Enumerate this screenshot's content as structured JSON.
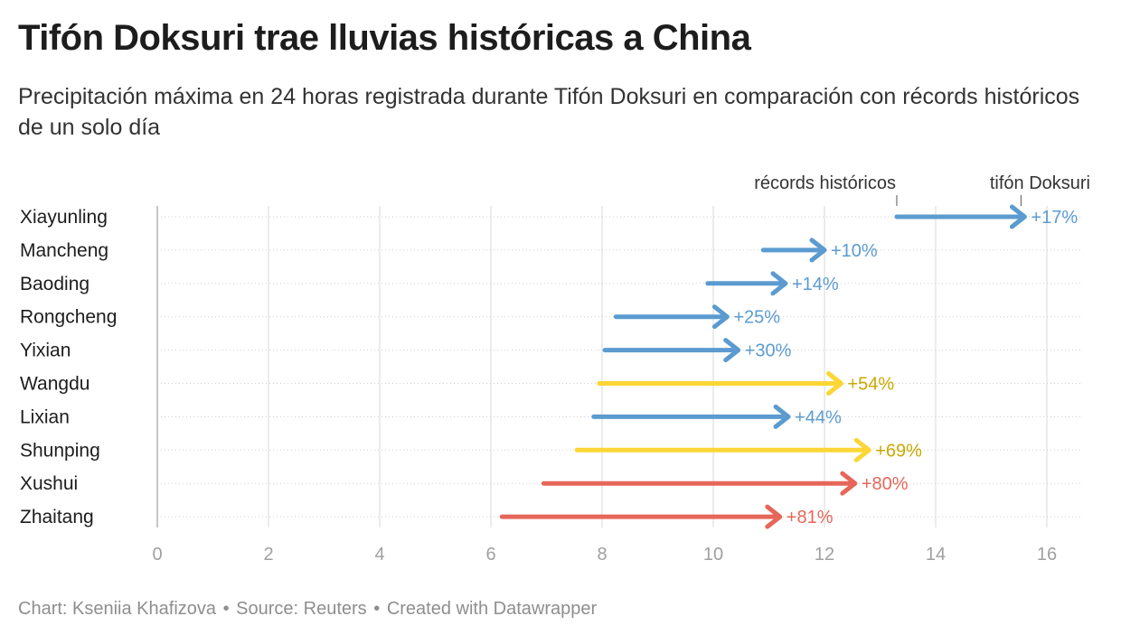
{
  "header": {
    "title": "Tifón Doksuri trae lluvias históricas a China",
    "subtitle": "Precipitación máxima en 24 horas registrada durante Tifón Doksuri en comparación con récords históricos de un solo día"
  },
  "footer": {
    "chart_by": "Chart: Kseniia Khafizova",
    "source": "Source: Reuters",
    "created_with": "Created with Datawrapper",
    "separator": "•"
  },
  "colors": {
    "blue": "#5b9bd0",
    "yellow": "#fcd635",
    "yellow_label": "#c9a800",
    "red": "#e6675a",
    "grid": "#d9d9d9",
    "axis": "#b5b5b5",
    "tick_label": "#a0a0a0"
  },
  "chart_data": {
    "type": "arrow",
    "title": "Tifón Doksuri trae lluvias históricas a China",
    "subtitle": "Precipitación máxima en 24 horas registrada durante Tifón Doksuri en comparación con récords históricos de un solo día",
    "xlim": [
      0,
      16.7
    ],
    "xticks": [
      0,
      2,
      4,
      6,
      8,
      10,
      12,
      14,
      16
    ],
    "grid": true,
    "legend": {
      "start_label": "récords históricos",
      "end_label": "tifón Doksuri"
    },
    "series": [
      {
        "category": "Xiayunling",
        "start": 13.3,
        "end": 15.6,
        "label": "+17%",
        "color": "blue"
      },
      {
        "category": "Mancheng",
        "start": 10.9,
        "end": 12.0,
        "label": "+10%",
        "color": "blue"
      },
      {
        "category": "Baoding",
        "start": 9.9,
        "end": 11.3,
        "label": "+14%",
        "color": "blue"
      },
      {
        "category": "Rongcheng",
        "start": 8.25,
        "end": 10.25,
        "label": "+25%",
        "color": "blue"
      },
      {
        "category": "Yixian",
        "start": 8.05,
        "end": 10.45,
        "label": "+30%",
        "color": "blue"
      },
      {
        "category": "Wangdu",
        "start": 7.95,
        "end": 12.3,
        "label": "+54%",
        "color": "yellow"
      },
      {
        "category": "Lixian",
        "start": 7.85,
        "end": 11.35,
        "label": "+44%",
        "color": "blue"
      },
      {
        "category": "Shunping",
        "start": 7.55,
        "end": 12.8,
        "label": "+69%",
        "color": "yellow"
      },
      {
        "category": "Xushui",
        "start": 6.95,
        "end": 12.55,
        "label": "+80%",
        "color": "red"
      },
      {
        "category": "Zhaitang",
        "start": 6.2,
        "end": 11.2,
        "label": "+81%",
        "color": "red"
      }
    ]
  }
}
